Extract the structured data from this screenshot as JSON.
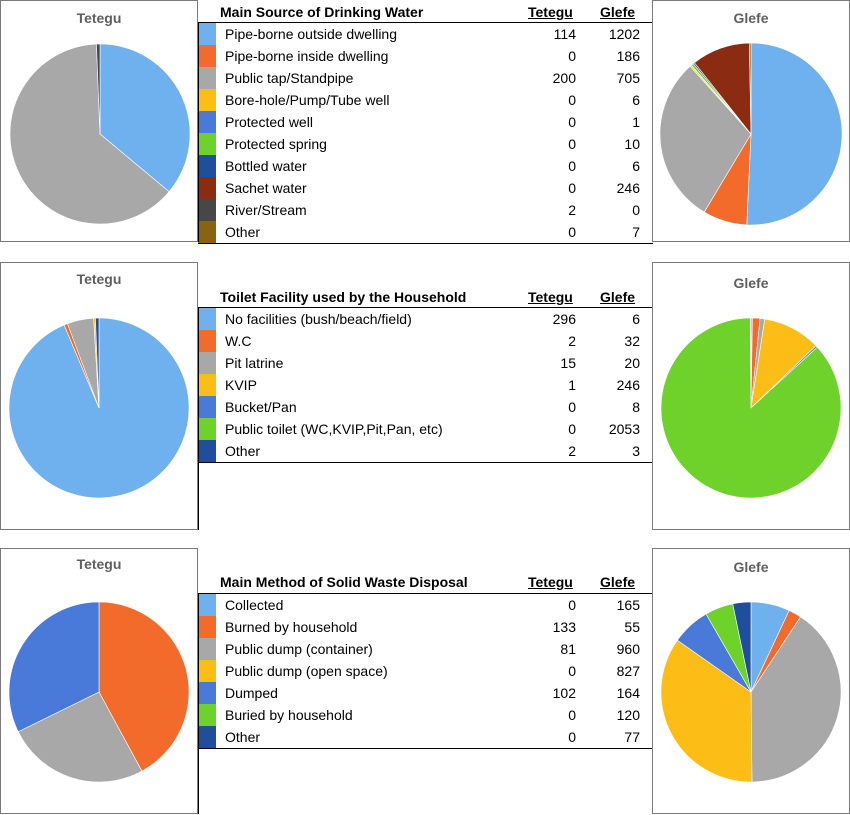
{
  "chart_data": [
    {
      "type": "pie",
      "title": "Main Source of Drinking Water",
      "column_headers": [
        "Tetegu",
        "Glefe"
      ],
      "categories": [
        "Pipe-borne outside dwelling",
        "Pipe-borne inside dwelling",
        "Public tap/Standpipe",
        "Bore-hole/Pump/Tube well",
        "Protected well",
        "Protected spring",
        "Bottled water",
        "Sachet water",
        "River/Stream",
        "Other"
      ],
      "colors": [
        "#6fb0ee",
        "#f26b2b",
        "#a8a8a8",
        "#fdbd17",
        "#4a7ad9",
        "#6ed22a",
        "#1f4e9c",
        "#8b2c12",
        "#474747",
        "#8a6312"
      ],
      "series": [
        {
          "name": "Tetegu",
          "values": [
            114,
            0,
            200,
            0,
            0,
            0,
            0,
            0,
            2,
            0
          ]
        },
        {
          "name": "Glefe",
          "values": [
            1202,
            186,
            705,
            6,
            1,
            10,
            6,
            246,
            0,
            7
          ]
        }
      ]
    },
    {
      "type": "pie",
      "title": "Toilet Facility used by the Household",
      "column_headers": [
        "Tetegu",
        "Glefe"
      ],
      "categories": [
        "No facilities (bush/beach/field)",
        "W.C",
        "Pit latrine",
        "KVIP",
        "Bucket/Pan",
        "Public toilet (WC,KVIP,Pit,Pan, etc)",
        "Other"
      ],
      "colors": [
        "#6fb0ee",
        "#f26b2b",
        "#a8a8a8",
        "#fdbd17",
        "#4a7ad9",
        "#6ed22a",
        "#1f4e9c"
      ],
      "series": [
        {
          "name": "Tetegu",
          "values": [
            296,
            2,
            15,
            1,
            0,
            0,
            2
          ]
        },
        {
          "name": "Glefe",
          "values": [
            6,
            32,
            20,
            246,
            8,
            2053,
            3
          ]
        }
      ]
    },
    {
      "type": "pie",
      "title": "Main Method of Solid Waste Disposal",
      "column_headers": [
        "Tetegu",
        "Glefe"
      ],
      "categories": [
        "Collected",
        "Burned by household",
        "Public dump (container)",
        "Public dump (open space)",
        "Dumped",
        "Buried by household",
        "Other"
      ],
      "colors": [
        "#6fb0ee",
        "#f26b2b",
        "#a8a8a8",
        "#fdbd17",
        "#4a7ad9",
        "#6ed22a",
        "#1f4e9c"
      ],
      "series": [
        {
          "name": "Tetegu",
          "values": [
            0,
            133,
            81,
            0,
            102,
            0,
            0
          ]
        },
        {
          "name": "Glefe",
          "values": [
            165,
            55,
            960,
            827,
            164,
            120,
            77
          ]
        }
      ]
    }
  ]
}
